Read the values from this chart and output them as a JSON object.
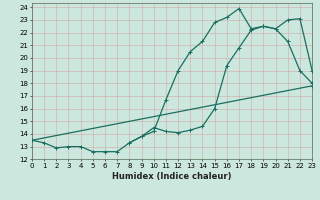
{
  "xlabel": "Humidex (Indice chaleur)",
  "bg_color": "#cce8de",
  "grid_color": "#b0d4cc",
  "line_color": "#1a6e60",
  "xlim": [
    0,
    23
  ],
  "ylim": [
    12,
    24.3
  ],
  "xticks": [
    0,
    1,
    2,
    3,
    4,
    5,
    6,
    7,
    8,
    9,
    10,
    11,
    12,
    13,
    14,
    15,
    16,
    17,
    18,
    19,
    20,
    21,
    22,
    23
  ],
  "yticks": [
    12,
    13,
    14,
    15,
    16,
    17,
    18,
    19,
    20,
    21,
    22,
    23,
    24
  ],
  "line1_x": [
    0,
    1,
    2,
    3,
    4,
    5,
    6,
    7,
    8,
    9,
    10,
    11,
    12,
    13,
    14,
    15,
    16,
    17,
    18,
    19,
    20,
    21,
    22,
    23
  ],
  "line1_y": [
    13.5,
    13.3,
    12.9,
    13.0,
    13.0,
    12.6,
    12.6,
    12.6,
    13.3,
    13.8,
    14.2,
    16.7,
    19.0,
    20.5,
    21.3,
    22.8,
    23.2,
    23.9,
    22.3,
    22.5,
    22.3,
    21.3,
    19.0,
    18.0
  ],
  "line2_x": [
    8,
    9,
    10,
    11,
    12,
    13,
    14,
    15,
    16,
    17,
    18,
    19,
    20,
    21,
    22,
    23
  ],
  "line2_y": [
    13.3,
    13.8,
    14.5,
    14.2,
    14.1,
    14.3,
    14.6,
    16.0,
    19.4,
    20.8,
    22.2,
    22.5,
    22.3,
    23.0,
    23.1,
    19.0
  ],
  "line3_x": [
    0,
    23
  ],
  "line3_y": [
    13.5,
    17.8
  ],
  "marker_size": 2.5,
  "linewidth": 0.9,
  "axis_fontsize": 6,
  "tick_fontsize": 5
}
